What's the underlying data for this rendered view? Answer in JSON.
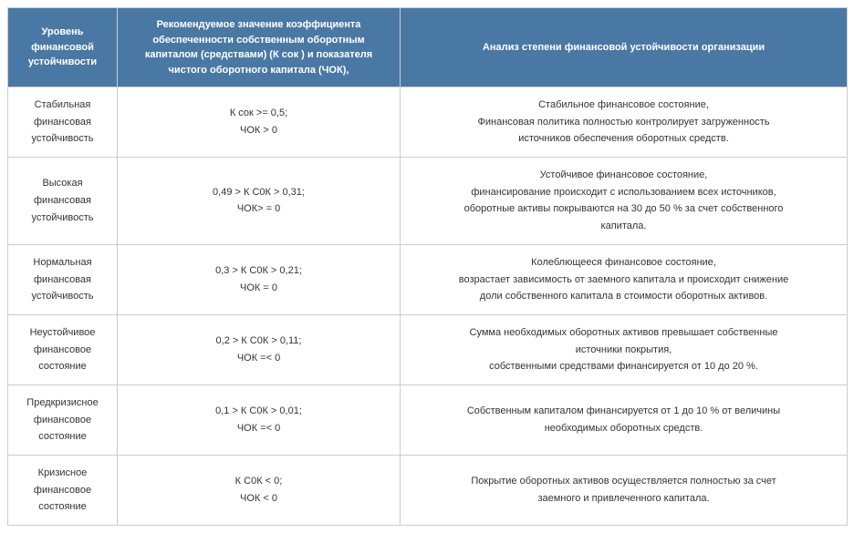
{
  "table": {
    "header_bg": "#4a78a4",
    "header_color": "#ffffff",
    "border_color": "#cccccc",
    "text_color": "#333333",
    "columns": [
      "Уровень финансовой устойчивости",
      "Рекомендуемое значение коэффициента обеспеченности собственным оборотным капиталом (средствами) (К сок ) и показателя чистого оборотного капитала (ЧОК),",
      "Анализ степени финансовой устойчивости организации"
    ],
    "rows": [
      {
        "level": [
          "Стабильная",
          "финансовая",
          "устойчивость"
        ],
        "formula": [
          "К сок >= 0,5;",
          "ЧОК > 0"
        ],
        "analysis": [
          "Стабильное финансовое состояние,",
          "Финансовая политика полностью контролирует загруженность",
          "источников обеспечения оборотных средств."
        ]
      },
      {
        "level": [
          "Высокая",
          "финансовая",
          "устойчивость"
        ],
        "formula": [
          "0,49 > К С0К > 0,31;",
          "ЧОК> = 0"
        ],
        "analysis": [
          "Устойчивое финансовое состояние,",
          "финансирование происходит с использованием всех источников,",
          "оборотные активы покрываются на  30 до 50 % за счет собственного",
          "капитала."
        ]
      },
      {
        "level": [
          "Нормальная",
          "финансовая",
          "устойчивость"
        ],
        "formula": [
          "0,3 > К С0К > 0,21;",
          "ЧОК = 0"
        ],
        "analysis": [
          "Колеблющееся финансовое состояние,",
          "возрастает зависимость от заемного капитала и происходит снижение",
          "доли собственного капитала в стоимости оборотных активов."
        ]
      },
      {
        "level": [
          "Неустойчивое",
          "финансовое",
          "состояние"
        ],
        "formula": [
          "0,2 > К С0К > 0,11;",
          "ЧОК =< 0"
        ],
        "analysis": [
          "Сумма необходимых оборотных активов превышает собственные",
          "источники покрытия,",
          "собственными средствами финансируется от 10 до 20 %."
        ]
      },
      {
        "level": [
          "Предкризисное",
          "финансовое",
          "состояние"
        ],
        "formula": [
          "0,1 > К С0К > 0,01;",
          "ЧОК =< 0"
        ],
        "analysis": [
          "Собственным капиталом финансируется от 1 до 10 % от величины",
          "необходимых оборотных средств."
        ]
      },
      {
        "level": [
          "Кризисное",
          "финансовое",
          "состояние"
        ],
        "formula": [
          "К С0К < 0;",
          "ЧОК < 0"
        ],
        "analysis": [
          "Покрытие оборотных активов осуществляется полностью за счет",
          "заемного и привлеченного капитала."
        ]
      }
    ]
  }
}
